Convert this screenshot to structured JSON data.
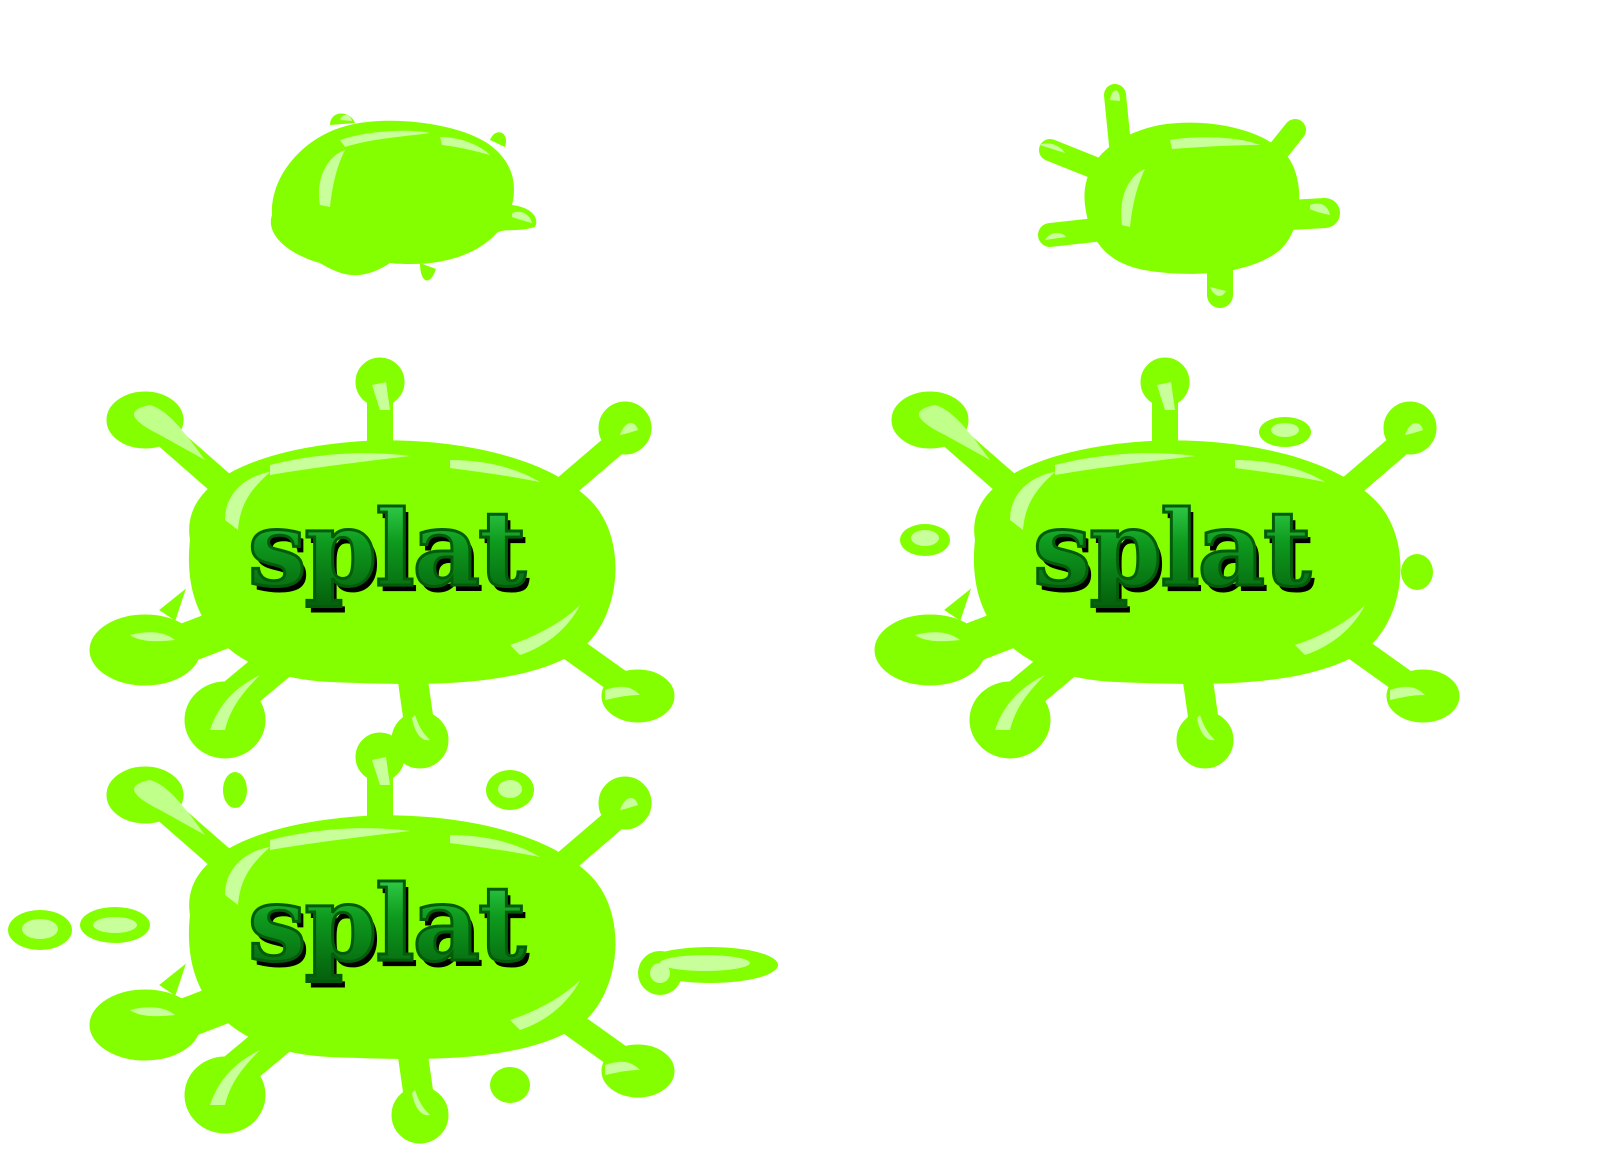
{
  "sprites": [
    {
      "id": "blob-plain",
      "variant": "plain",
      "label": ""
    },
    {
      "id": "blob-spiky",
      "variant": "spiky",
      "label": ""
    },
    {
      "id": "splat-a",
      "variant": "splat",
      "label": "splat"
    },
    {
      "id": "splat-b",
      "variant": "splat-drops",
      "label": "splat"
    },
    {
      "id": "splat-c",
      "variant": "splat-burst",
      "label": "splat"
    }
  ],
  "colors": {
    "slime": "#84FF00",
    "highlight": "#C8FF9A",
    "text_fill": "#0E9A1E",
    "text_dark": "#045C0B",
    "text_shadow": "#000000",
    "background": "#FFFFFF"
  }
}
